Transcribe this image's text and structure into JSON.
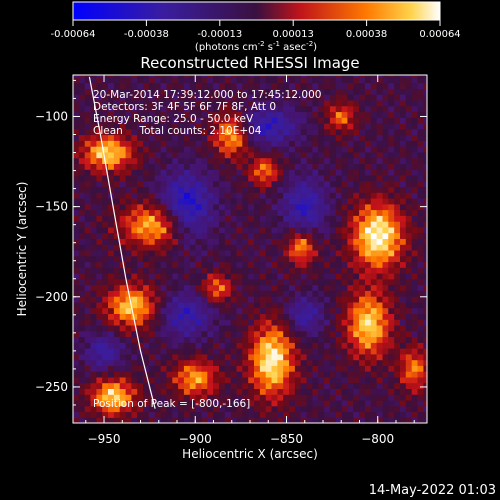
{
  "colorbar": {
    "ticks": [
      "-0.00064",
      "-0.00038",
      "-0.00013",
      "0.00013",
      "0.00038",
      "0.00064"
    ],
    "units_main": "(photons cm",
    "units_exp1": "-2",
    "units_mid": " s",
    "units_exp2": "-1",
    "units_end": " asec",
    "units_exp3": "-2",
    "units_close": ")"
  },
  "info_lines": [
    "20-Mar-2014 17:39:12.000 to 17:45:12.000",
    "Detectors: 3F 4F 5F 6F 7F 8F, Att 0",
    "Energy Range: 25.0 - 50.0 keV",
    "Clean     Total counts: 2.10E+04"
  ],
  "peak_label": "Position of Peak = [-800,-166]",
  "footer_date": "14-May-2022 01:03",
  "chart_data": {
    "type": "heatmap",
    "title": "Reconstructed RHESSI Image",
    "xlabel": "Heliocentric X (arcsec)",
    "ylabel": "Heliocentric Y (arcsec)",
    "xlim": [
      -967,
      -773
    ],
    "ylim": [
      -270,
      -77
    ],
    "xticks": [
      -950,
      -900,
      -850,
      -800
    ],
    "yticks": [
      -100,
      -150,
      -200,
      -250
    ],
    "colorscale_range": [
      -0.00064,
      0.00064
    ],
    "colors": {
      "neg_min": "#0000ff",
      "neg_mid": "#3a1d9e",
      "zero": "#3a1040",
      "pos_low": "#c0141a",
      "pos_mid": "#ff7a00",
      "pos_high": "#ffffff"
    },
    "peak": [
      -800,
      -166
    ],
    "limb_curve": [
      [
        -958,
        -78
      ],
      [
        -952,
        -110
      ],
      [
        -945,
        -150
      ],
      [
        -938,
        -190
      ],
      [
        -930,
        -230
      ],
      [
        -922,
        -262
      ]
    ],
    "hot_regions": [
      {
        "x": -948,
        "y": -120,
        "strength": 0.85,
        "rx": 14,
        "ry": 10
      },
      {
        "x": -922,
        "y": -160,
        "strength": 0.8,
        "rx": 18,
        "ry": 12
      },
      {
        "x": -880,
        "y": -110,
        "strength": 0.75,
        "rx": 10,
        "ry": 12
      },
      {
        "x": -862,
        "y": -130,
        "strength": 0.6,
        "rx": 8,
        "ry": 8
      },
      {
        "x": -800,
        "y": -166,
        "strength": 1.0,
        "rx": 14,
        "ry": 18
      },
      {
        "x": -805,
        "y": -215,
        "strength": 0.85,
        "rx": 12,
        "ry": 18
      },
      {
        "x": -858,
        "y": -235,
        "strength": 0.95,
        "rx": 12,
        "ry": 20
      },
      {
        "x": -935,
        "y": -205,
        "strength": 0.8,
        "rx": 14,
        "ry": 12
      },
      {
        "x": -900,
        "y": -245,
        "strength": 0.7,
        "rx": 12,
        "ry": 10
      },
      {
        "x": -945,
        "y": -255,
        "strength": 0.85,
        "rx": 12,
        "ry": 10
      },
      {
        "x": -842,
        "y": -172,
        "strength": 0.7,
        "rx": 8,
        "ry": 10
      },
      {
        "x": -820,
        "y": -100,
        "strength": 0.55,
        "rx": 8,
        "ry": 8
      },
      {
        "x": -780,
        "y": -240,
        "strength": 0.6,
        "rx": 8,
        "ry": 12
      },
      {
        "x": -888,
        "y": -195,
        "strength": 0.6,
        "rx": 8,
        "ry": 8
      }
    ],
    "cold_regions": [
      {
        "x": -905,
        "y": -150,
        "strength": 0.8,
        "rx": 14,
        "ry": 18
      },
      {
        "x": -860,
        "y": -105,
        "strength": 0.6,
        "rx": 16,
        "ry": 10
      },
      {
        "x": -840,
        "y": -210,
        "strength": 0.5,
        "rx": 10,
        "ry": 10
      },
      {
        "x": -905,
        "y": -210,
        "strength": 0.55,
        "rx": 14,
        "ry": 12
      },
      {
        "x": -840,
        "y": -150,
        "strength": 0.6,
        "rx": 12,
        "ry": 16
      },
      {
        "x": -950,
        "y": -230,
        "strength": 0.5,
        "rx": 10,
        "ry": 10
      }
    ]
  }
}
